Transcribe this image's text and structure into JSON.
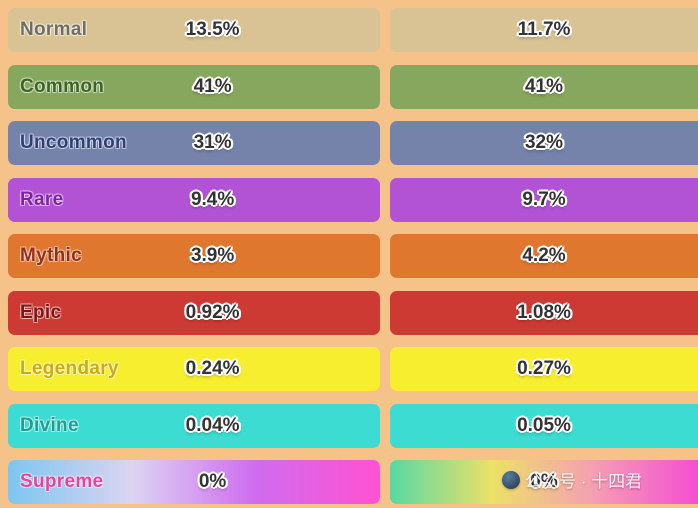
{
  "background": "#f5c289",
  "style": {
    "percent_color": "#333333",
    "text_outline": "#ffffff"
  },
  "table": {
    "rows": [
      {
        "name": "Normal",
        "left_percent": "13.5%",
        "right_percent": "11.7%",
        "color": "#d9c293",
        "name_color": "#6e6e62"
      },
      {
        "name": "Common",
        "left_percent": "41%",
        "right_percent": "41%",
        "color": "#87a75e",
        "name_color": "#3c6423"
      },
      {
        "name": "Uncommon",
        "left_percent": "31%",
        "right_percent": "32%",
        "color": "#7583ab",
        "name_color": "#2f4079"
      },
      {
        "name": "Rare",
        "left_percent": "9.4%",
        "right_percent": "9.7%",
        "color": "#b253d6",
        "name_color": "#7d1fa8"
      },
      {
        "name": "Mythic",
        "left_percent": "3.9%",
        "right_percent": "4.2%",
        "color": "#e0772e",
        "name_color": "#9c2c16"
      },
      {
        "name": "Epic",
        "left_percent": "0.92%",
        "right_percent": "1.08%",
        "color": "#cc3a33",
        "name_color": "#801414"
      },
      {
        "name": "Legendary",
        "left_percent": "0.24%",
        "right_percent": "0.27%",
        "color": "#f7ee30",
        "name_color": "#cfa91c"
      },
      {
        "name": "Divine",
        "left_percent": "0.04%",
        "right_percent": "0.05%",
        "color": "#3cdcd2",
        "name_color": "#1f9e94"
      },
      {
        "name": "Supreme",
        "left_percent": "0%",
        "right_percent": "0%",
        "gradient_left": [
          "#7cc6f0",
          "#dcd4f2",
          "#cf6cf0",
          "#ff52d0"
        ],
        "gradient_right": [
          "#57d9a3",
          "#ece167",
          "#f59db4",
          "#f44fd3"
        ],
        "name_color": "#ef3f9b"
      }
    ]
  },
  "watermark": {
    "text": "公众号 · 十四君"
  }
}
